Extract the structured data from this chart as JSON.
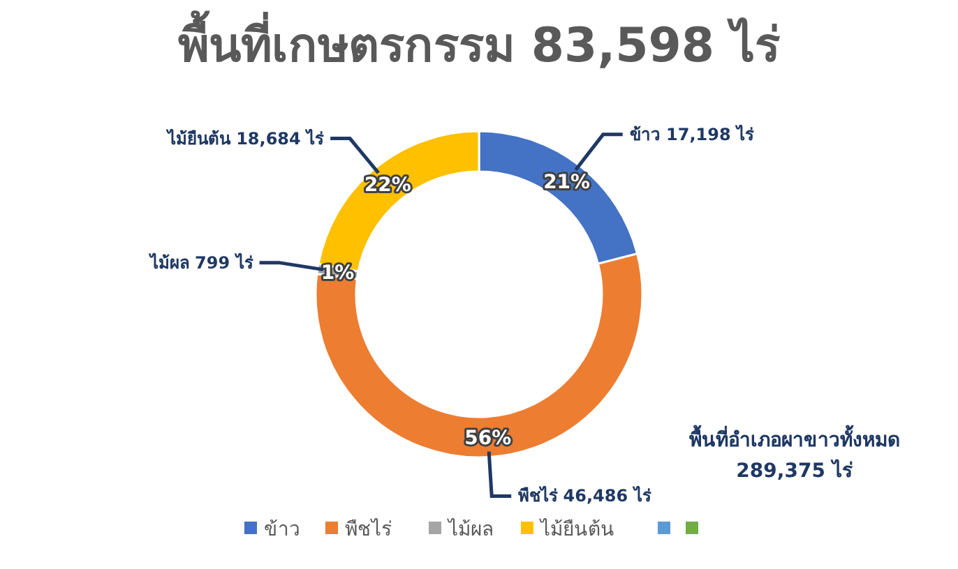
{
  "chart_data": {
    "type": "donut",
    "title": "พื้นที่เกษตรกรรม 83,598 ไร่",
    "categories": [
      "ข้าว",
      "พืชไร่",
      "ไม้ผล",
      "ไม้ยืนต้น",
      null,
      null
    ],
    "values": [
      21,
      56,
      1,
      22,
      0,
      0
    ],
    "colors": [
      "#4472c4",
      "#ed7d31",
      "#a5a5a5",
      "#ffc000",
      "#5b9bd5",
      "#70ad47"
    ],
    "value_labels": [
      "21%",
      "56%",
      "1%",
      "22%",
      null,
      null
    ],
    "legend": "bottom",
    "annotations": [
      {
        "text": "ข้าว 17,198 ไร่",
        "x": "ข้าว"
      },
      {
        "text": "พืชไร่ 46,486 ไร่",
        "x": "พืชไร่"
      },
      {
        "text": "ไม้ผล 799 ไร่",
        "x": "ไม้ผล"
      },
      {
        "text": "ไม้ยืนต้น 18,684 ไร่",
        "x": "ไม้ยืนต้น"
      },
      "พื้นที่อำเภอผาขาวทั้งหมด 289,375 ไร่"
    ]
  }
}
